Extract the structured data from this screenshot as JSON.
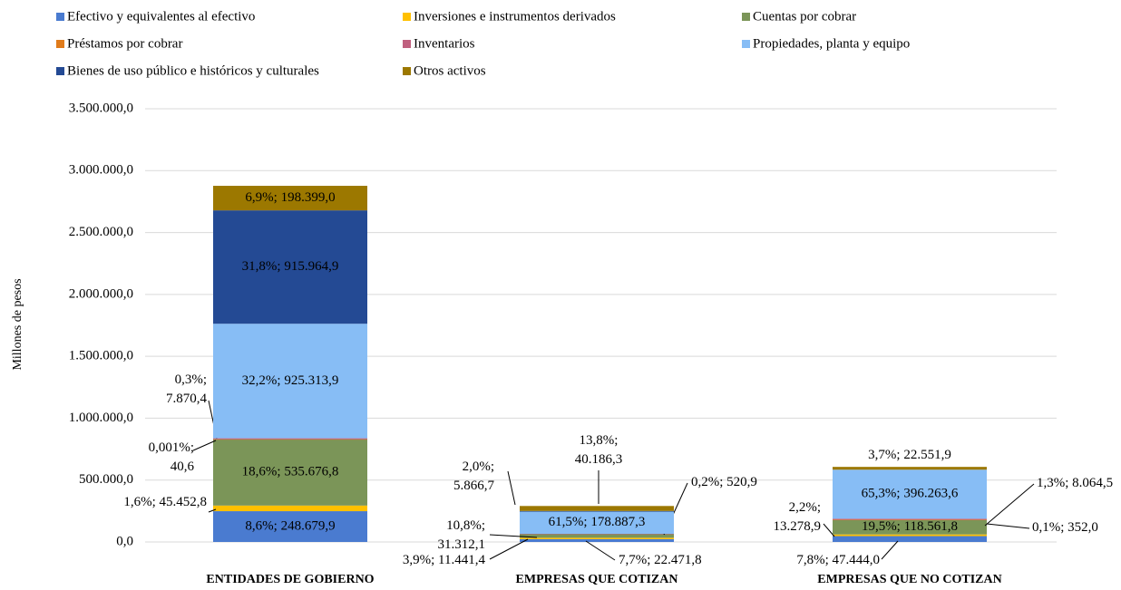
{
  "chart_data": {
    "type": "stacked_bar",
    "y_label": "Millones  de pesos",
    "categories": [
      "ENTIDADES DE GOBIERNO",
      "EMPRESAS QUE COTIZAN",
      "EMPRESAS QUE NO COTIZAN"
    ],
    "ylim": [
      0,
      3500000
    ],
    "yticks": [
      {
        "value": 0,
        "label": "0,0"
      },
      {
        "value": 500000,
        "label": "500.000,0"
      },
      {
        "value": 1000000,
        "label": "1.000.000,0"
      },
      {
        "value": 1500000,
        "label": "1.500.000,0"
      },
      {
        "value": 2000000,
        "label": "2.000.000,0"
      },
      {
        "value": 2500000,
        "label": "2.500.000,0"
      },
      {
        "value": 3000000,
        "label": "3.000.000,0"
      },
      {
        "value": 3500000,
        "label": "3.500.000,0"
      }
    ],
    "grid": true,
    "legend": "top",
    "series": [
      {
        "name": "Efectivo y equivalentes al efectivo",
        "color": "#4a7bd0",
        "values": [
          248679.9,
          22471.8,
          47444.0
        ],
        "value_labels": [
          "8,6%; 248.679,9",
          "7,7%; 22.471,8",
          "7,8%; 47.444,0"
        ]
      },
      {
        "name": "Inversiones e instrumentos derivados",
        "color": "#ffc000",
        "values": [
          45452.8,
          11441.4,
          13278.9
        ],
        "value_labels": [
          "1,6%; 45.452,8",
          "3,9%; 11.441,4",
          "2,2%; 13.278,9"
        ]
      },
      {
        "name": "Cuentas por cobrar",
        "color": "#7b9558",
        "values": [
          535676.8,
          31312.1,
          118561.8
        ],
        "value_labels": [
          "18,6%; 535.676,8",
          "10,8%; 31.312,1",
          "19,5%; 118.561,8"
        ]
      },
      {
        "name": "Préstamos por cobrar",
        "color": "#e07b1b",
        "values": [
          40.6,
          null,
          352.0
        ],
        "value_labels": [
          "0,001%; 40,6",
          null,
          "0,1%; 352,0"
        ]
      },
      {
        "name": "Inventarios",
        "color": "#c0607f",
        "values": [
          7870.4,
          520.9,
          8064.5
        ],
        "value_labels": [
          "0,3%; 7.870,4",
          "0,2%; 520,9",
          "1,3%; 8.064,5"
        ]
      },
      {
        "name": "Propiedades, planta y equipo",
        "color": "#87bdf5",
        "values": [
          925313.9,
          178887.3,
          396263.6
        ],
        "value_labels": [
          "32,2%; 925.313,9",
          "61,5%; 178.887,3",
          "65,3%; 396.263,6"
        ]
      },
      {
        "name": "Bienes de uso público e históricos y culturales",
        "color": "#244a94",
        "values": [
          915964.9,
          5866.7,
          null
        ],
        "value_labels": [
          "31,8%; 915.964,9",
          "2,0%; 5.866,7",
          null
        ]
      },
      {
        "name": "Otros activos",
        "color": "#9c7800",
        "values": [
          198399.0,
          40186.3,
          22551.9
        ],
        "value_labels": [
          "6,9%; 198.399,0",
          "13,8%; 40.186,3",
          "3,7%; 22.551,9"
        ]
      }
    ]
  }
}
